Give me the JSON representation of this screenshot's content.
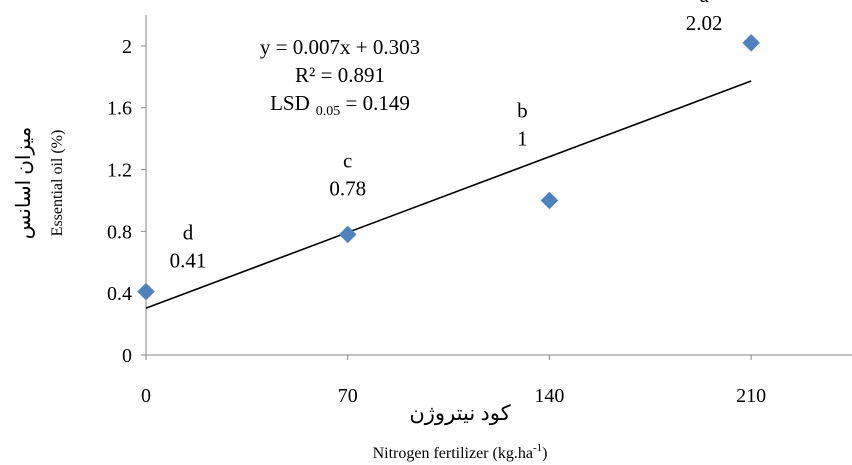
{
  "chart_data": {
    "type": "scatter",
    "x": [
      0,
      70,
      140,
      210
    ],
    "y": [
      0.41,
      0.78,
      1.0,
      2.02
    ],
    "point_labels": [
      {
        "letter": "d",
        "value": "0.41"
      },
      {
        "letter": "c",
        "value": "0.78"
      },
      {
        "letter": "b",
        "value": "1"
      },
      {
        "letter": "a",
        "value": "2.02"
      }
    ],
    "marker_color": "#4f81bd",
    "trendline": {
      "slope": 0.007,
      "intercept": 0.303,
      "color": "#000000"
    },
    "equation_lines": {
      "eq": "y = 0.007x + 0.303",
      "r2": "R² = 0.891",
      "lsd_prefix": "LSD",
      "lsd_sub": "0.05",
      "lsd_suffix": " = 0.149"
    },
    "xticks": [
      "0",
      "70",
      "140",
      "210"
    ],
    "yticks": [
      "0",
      "0.4",
      "0.8",
      "1.2",
      "1.6",
      "2"
    ],
    "xlim": [
      0,
      245
    ],
    "ylim": [
      0,
      2.2
    ],
    "xlabel_fa": "کود نیتروژن",
    "xlabel_en_prefix": "Nitrogen fertilizer (kg.ha",
    "xlabel_en_sup": "-1",
    "xlabel_en_suffix": ")",
    "ylabel_fa": "میزان اسانس",
    "ylabel_en": "Essential oil (%)",
    "grid": false,
    "legend": "none"
  }
}
